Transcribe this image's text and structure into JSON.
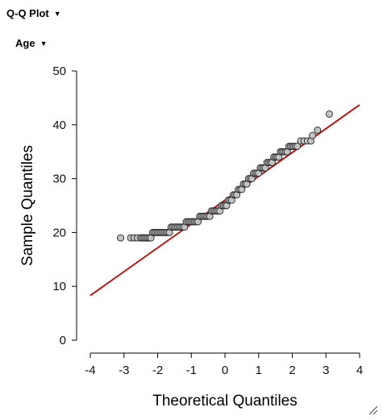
{
  "header": {
    "plot_dropdown_label": "Q-Q Plot",
    "variable_dropdown_label": "Age"
  },
  "icons": {
    "dropdown": "caret-down-icon",
    "resize": "resize-grip-icon"
  },
  "colors": {
    "reference_line": "#b01818",
    "point_fill": "#c4c4c4",
    "point_stroke": "#222222",
    "axis": "#000000"
  },
  "chart_data": {
    "type": "scatter",
    "title": "",
    "xlabel": "Theoretical Quantiles",
    "ylabel": "Sample Quantiles",
    "xlim": [
      -4,
      4
    ],
    "ylim": [
      0,
      50
    ],
    "xticks": [
      -4,
      -3,
      -2,
      -1,
      0,
      1,
      2,
      3,
      4
    ],
    "yticks": [
      0,
      10,
      20,
      30,
      40,
      50
    ],
    "xtick_labels": [
      "-4",
      "-3",
      "-2",
      "-1",
      "0",
      "1",
      "2",
      "3",
      "4"
    ],
    "ytick_labels": [
      "0",
      "10",
      "20",
      "30",
      "40",
      "50"
    ],
    "grid": false,
    "reference_line": {
      "x": [
        -4,
        4
      ],
      "y": [
        8.3,
        43.7
      ]
    },
    "series": [
      {
        "points": [
          [
            -3.1,
            19
          ],
          [
            -2.8,
            19
          ],
          [
            -2.7,
            19
          ],
          [
            -2.6,
            19
          ],
          [
            -2.5,
            19
          ],
          [
            -2.45,
            19
          ],
          [
            -2.4,
            19
          ],
          [
            -2.35,
            19
          ],
          [
            -2.3,
            19
          ],
          [
            -2.25,
            19
          ],
          [
            -2.2,
            19
          ],
          [
            -2.15,
            20
          ],
          [
            -2.1,
            20
          ],
          [
            -2.05,
            20
          ],
          [
            -2.0,
            20
          ],
          [
            -1.95,
            20
          ],
          [
            -1.9,
            20
          ],
          [
            -1.85,
            20
          ],
          [
            -1.8,
            20
          ],
          [
            -1.75,
            20
          ],
          [
            -1.7,
            20
          ],
          [
            -1.65,
            20
          ],
          [
            -1.6,
            21
          ],
          [
            -1.55,
            21
          ],
          [
            -1.5,
            21
          ],
          [
            -1.45,
            21
          ],
          [
            -1.4,
            21
          ],
          [
            -1.35,
            21
          ],
          [
            -1.3,
            21
          ],
          [
            -1.25,
            21
          ],
          [
            -1.2,
            21
          ],
          [
            -1.15,
            22
          ],
          [
            -1.1,
            22
          ],
          [
            -1.05,
            22
          ],
          [
            -1.0,
            22
          ],
          [
            -0.95,
            22
          ],
          [
            -0.9,
            22
          ],
          [
            -0.85,
            22
          ],
          [
            -0.8,
            22
          ],
          [
            -0.75,
            23
          ],
          [
            -0.7,
            23
          ],
          [
            -0.65,
            23
          ],
          [
            -0.6,
            23
          ],
          [
            -0.55,
            23
          ],
          [
            -0.5,
            23
          ],
          [
            -0.45,
            23
          ],
          [
            -0.4,
            24
          ],
          [
            -0.35,
            24
          ],
          [
            -0.3,
            24
          ],
          [
            -0.25,
            24
          ],
          [
            -0.2,
            24
          ],
          [
            -0.15,
            24
          ],
          [
            -0.1,
            25
          ],
          [
            -0.05,
            25
          ],
          [
            0.0,
            25
          ],
          [
            0.05,
            25
          ],
          [
            0.1,
            26
          ],
          [
            0.15,
            26
          ],
          [
            0.2,
            26
          ],
          [
            0.25,
            27
          ],
          [
            0.3,
            27
          ],
          [
            0.35,
            27
          ],
          [
            0.4,
            28
          ],
          [
            0.45,
            28
          ],
          [
            0.5,
            28
          ],
          [
            0.55,
            29
          ],
          [
            0.6,
            29
          ],
          [
            0.65,
            29
          ],
          [
            0.7,
            30
          ],
          [
            0.75,
            30
          ],
          [
            0.8,
            30
          ],
          [
            0.85,
            31
          ],
          [
            0.9,
            31
          ],
          [
            0.95,
            31
          ],
          [
            1.0,
            31
          ],
          [
            1.05,
            32
          ],
          [
            1.1,
            32
          ],
          [
            1.15,
            32
          ],
          [
            1.2,
            32
          ],
          [
            1.25,
            33
          ],
          [
            1.3,
            33
          ],
          [
            1.35,
            33
          ],
          [
            1.4,
            33
          ],
          [
            1.45,
            34
          ],
          [
            1.5,
            34
          ],
          [
            1.55,
            34
          ],
          [
            1.6,
            34
          ],
          [
            1.65,
            35
          ],
          [
            1.7,
            35
          ],
          [
            1.75,
            35
          ],
          [
            1.8,
            35
          ],
          [
            1.85,
            35
          ],
          [
            1.9,
            36
          ],
          [
            1.95,
            36
          ],
          [
            2.0,
            36
          ],
          [
            2.05,
            36
          ],
          [
            2.1,
            36
          ],
          [
            2.15,
            36
          ],
          [
            2.25,
            37
          ],
          [
            2.35,
            37
          ],
          [
            2.45,
            37
          ],
          [
            2.55,
            37
          ],
          [
            2.6,
            38
          ],
          [
            2.75,
            39
          ],
          [
            3.1,
            42
          ]
        ]
      }
    ]
  }
}
